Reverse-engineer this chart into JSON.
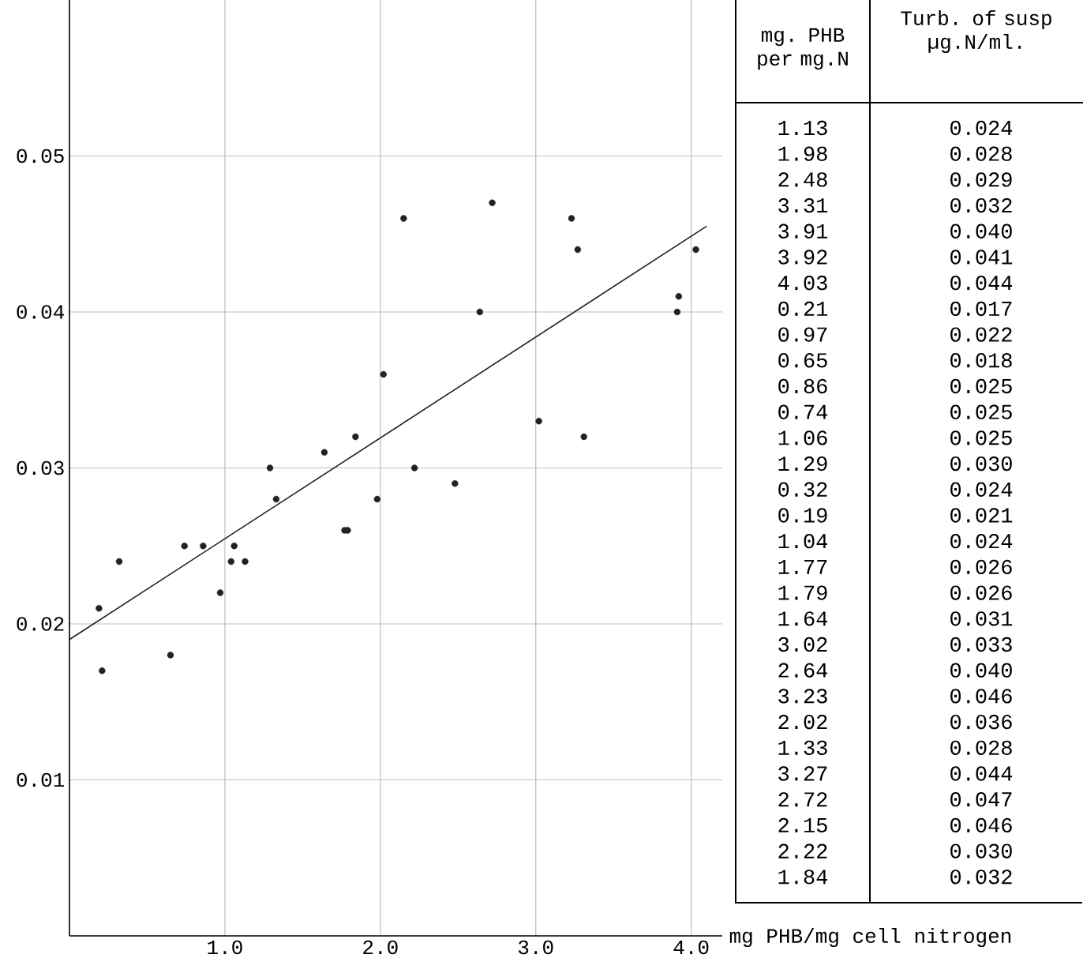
{
  "chart_data": {
    "type": "scatter",
    "xlabel": "mg PHB/mg cell nitrogen",
    "annotations": [
      "mg. PHB per mg.N",
      "Turb. of susp µg.N/ml.",
      "1.13",
      "0.024",
      "1.98",
      "0.028",
      "2.48",
      "0.029",
      "3.31",
      "0.032",
      "3.91",
      "0.040",
      "3.92",
      "0.041",
      "4.03",
      "0.044",
      "0.21",
      "0.017",
      "0.97",
      "0.022",
      "0.65",
      "0.018",
      "0.86",
      "0.025",
      "0.74",
      "0.025",
      "1.06",
      "0.025",
      "1.29",
      "0.030",
      "0.32",
      "0.024",
      "0.19",
      "0.021",
      "1.04",
      "0.024",
      "1.77",
      "0.026",
      "1.79",
      "0.026",
      "1.64",
      "0.031",
      "3.02",
      "0.033",
      "2.64",
      "0.040",
      "3.23",
      "0.046",
      "2.02",
      "0.036",
      "1.33",
      "0.028",
      "3.27",
      "0.044",
      "2.72",
      "0.047",
      "2.15",
      "0.046",
      "2.22",
      "0.030",
      "1.84",
      "0.032"
    ],
    "xlim": [
      0,
      4.2
    ],
    "ylim": [
      0,
      0.06
    ],
    "xticks": [
      {
        "value": 1,
        "label": "1.0"
      },
      {
        "value": 2,
        "label": "2.0"
      },
      {
        "value": 3,
        "label": "3.0"
      },
      {
        "value": 4,
        "label": "4.0"
      }
    ],
    "yticks": [
      {
        "value": 0.01,
        "label": "0.01"
      },
      {
        "value": 0.02,
        "label": "0.02"
      },
      {
        "value": 0.03,
        "label": "0.03"
      },
      {
        "value": 0.04,
        "label": "0.04"
      },
      {
        "value": 0.05,
        "label": "0.05"
      }
    ],
    "grid": true,
    "series": [
      {
        "color": "#222222",
        "marker": "circle",
        "x": [
          1.13,
          1.98,
          2.48,
          3.31,
          3.91,
          3.92,
          4.03,
          0.21,
          0.97,
          0.65,
          0.86,
          0.74,
          1.06,
          1.29,
          0.32,
          0.19,
          1.04,
          1.77,
          1.79,
          1.64,
          3.02,
          2.64,
          3.23,
          2.02,
          1.33,
          3.27,
          2.72,
          2.15,
          2.22,
          1.84
        ],
        "values": [
          0.024,
          0.028,
          0.029,
          0.032,
          0.04,
          0.041,
          0.044,
          0.017,
          0.022,
          0.018,
          0.025,
          0.025,
          0.025,
          0.03,
          0.024,
          0.021,
          0.024,
          0.026,
          0.026,
          0.031,
          0.033,
          0.04,
          0.046,
          0.036,
          0.028,
          0.044,
          0.047,
          0.046,
          0.03,
          0.032
        ]
      },
      {
        "type": "line",
        "color": "#222222",
        "marker": "none",
        "line_style": "solid",
        "x": [
          0,
          4.1
        ],
        "values": [
          0.019,
          0.0455
        ]
      }
    ]
  }
}
